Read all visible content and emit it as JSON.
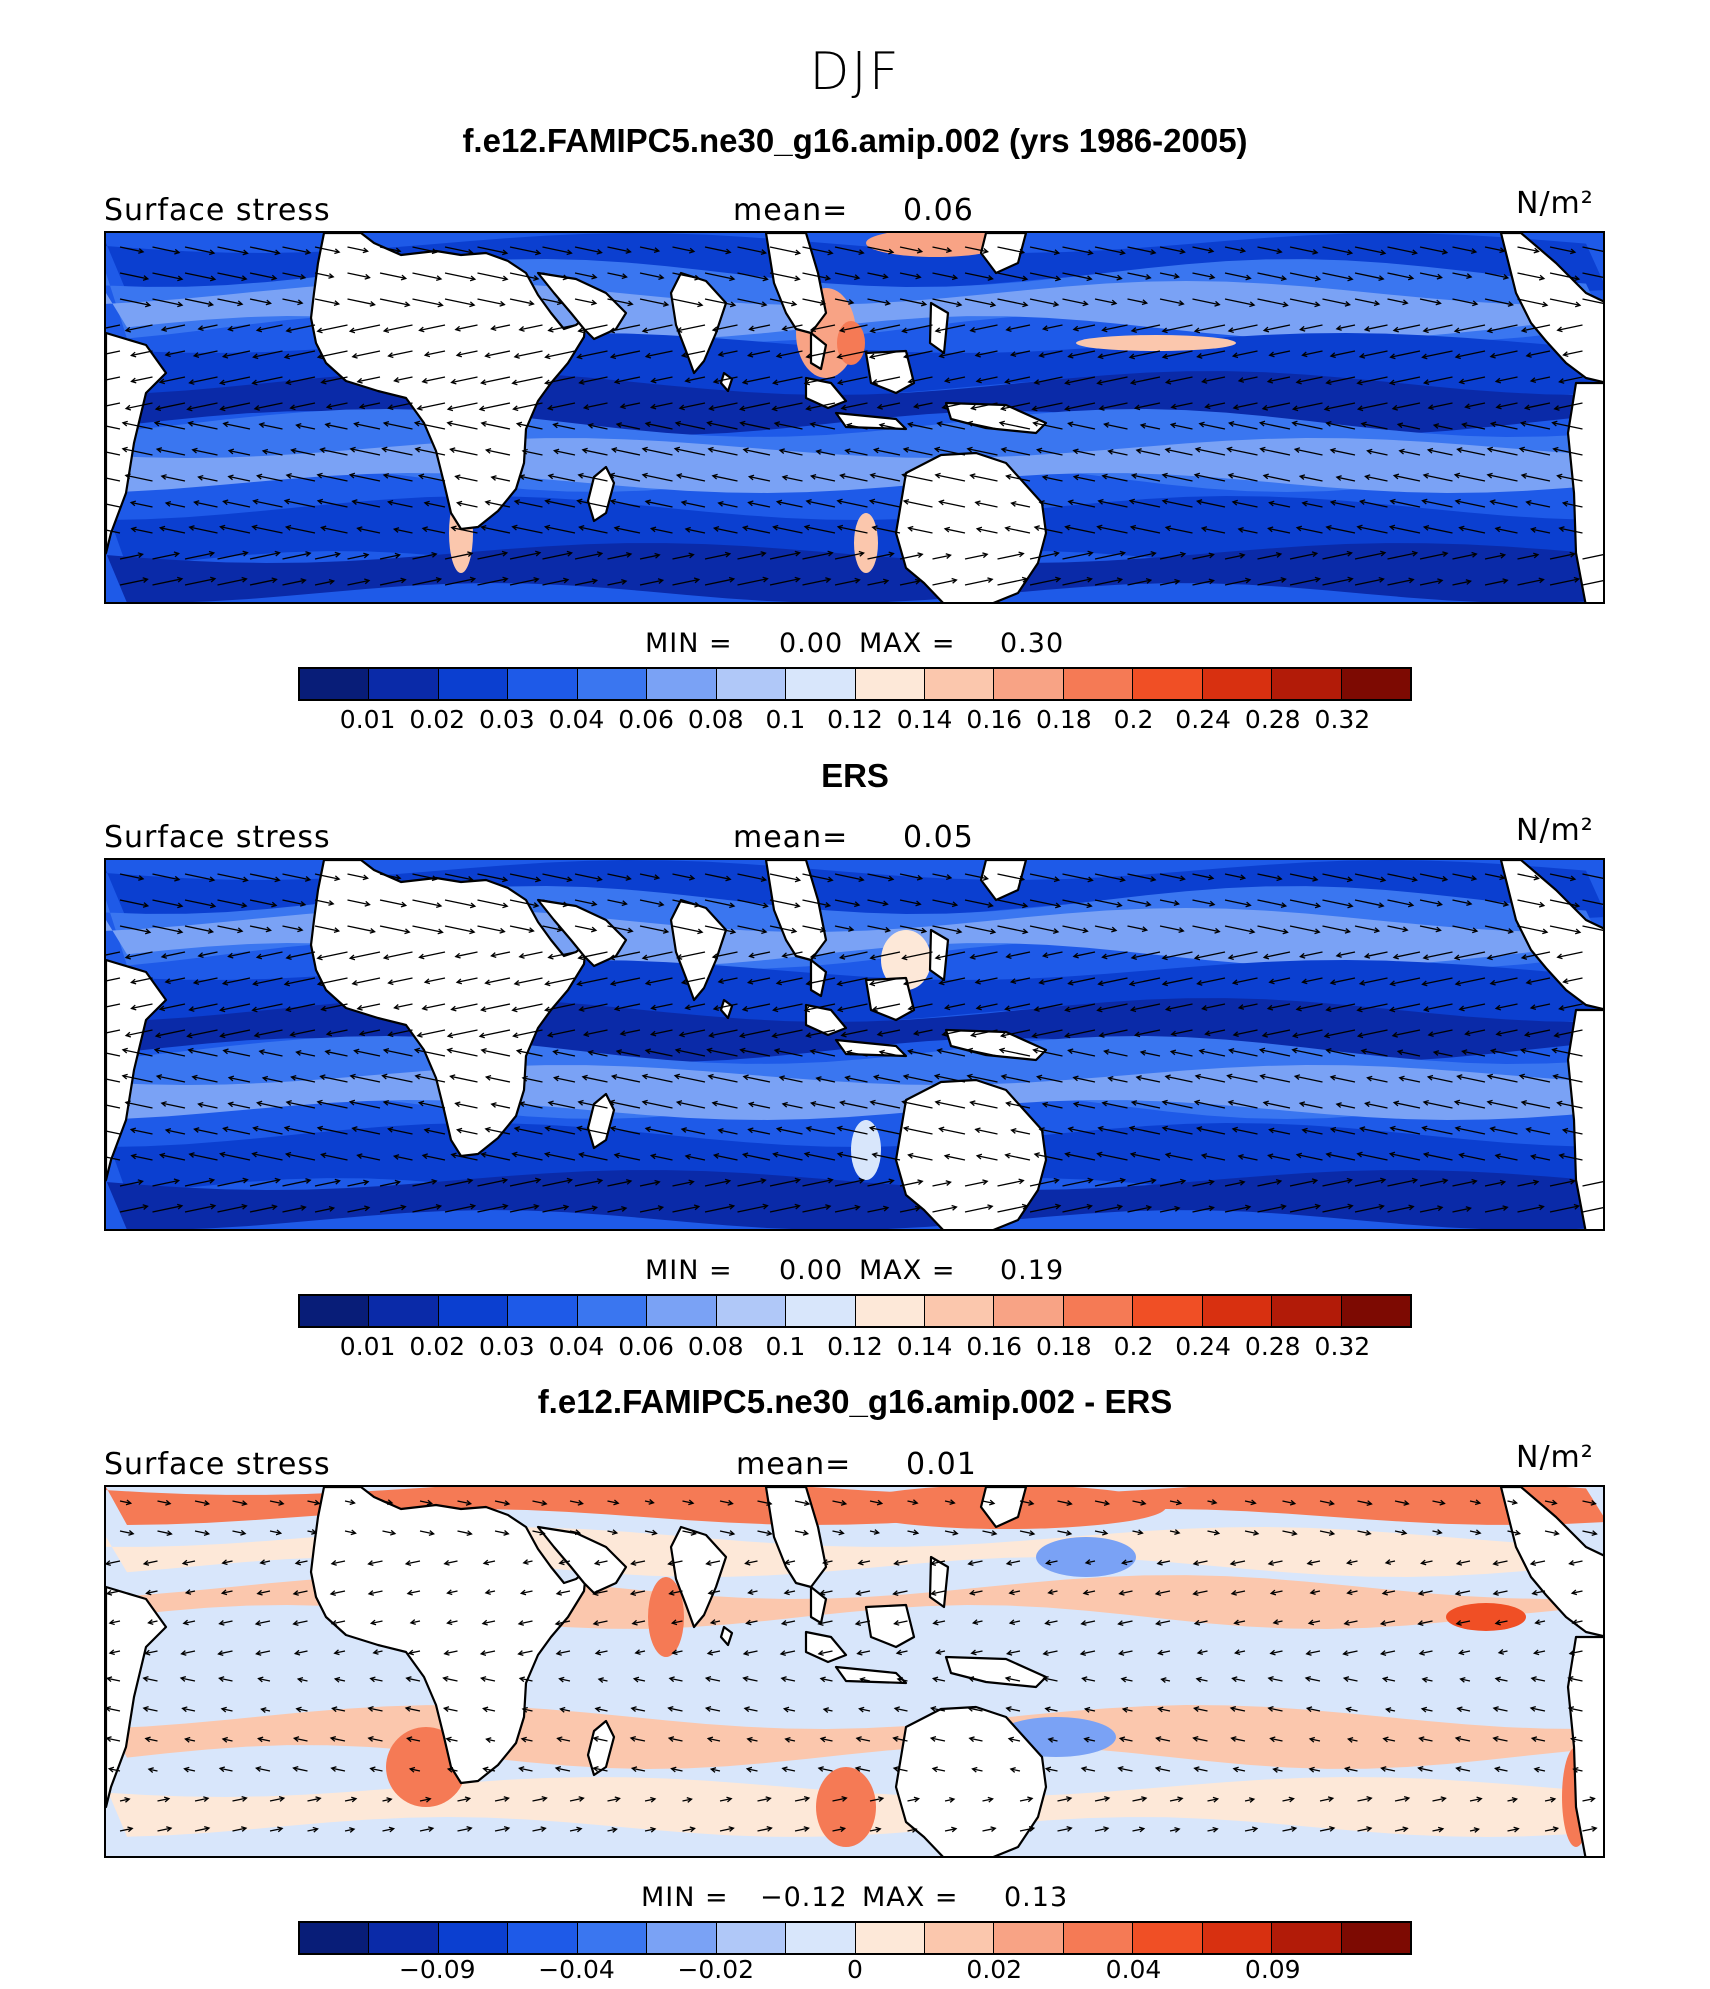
{
  "season": "DJF",
  "colors": [
    "#081d78",
    "#0a2aa8",
    "#0b3fd0",
    "#1e5ae8",
    "#3a76f0",
    "#7aa2f5",
    "#b0c8f8",
    "#d8e6fb",
    "#fde8d8",
    "#fbc7ad",
    "#f8a385",
    "#f57a55",
    "#f04f25",
    "#d83010",
    "#b21b08",
    "#7d0a02"
  ],
  "panels": [
    {
      "title": "f.e12.FAMIPC5.ne30_g16.amip.002 (yrs 1986-2005)",
      "field": "Surface stress",
      "mean_label": "mean=",
      "mean_value": "0.06",
      "units": "N/m²",
      "min_label": "MIN =",
      "min_value": "0.00",
      "max_label": "MAX =",
      "max_value": "0.30",
      "ticks": [
        "0.01",
        "0.02",
        "0.03",
        "0.04",
        "0.06",
        "0.08",
        "0.1",
        "0.12",
        "0.14",
        "0.16",
        "0.18",
        "0.2",
        "0.24",
        "0.28",
        "0.32"
      ]
    },
    {
      "title": "ERS",
      "field": "Surface stress",
      "mean_label": "mean=",
      "mean_value": "0.05",
      "units": "N/m²",
      "min_label": "MIN =",
      "min_value": "0.00",
      "max_label": "MAX =",
      "max_value": "0.19",
      "ticks": [
        "0.01",
        "0.02",
        "0.03",
        "0.04",
        "0.06",
        "0.08",
        "0.1",
        "0.12",
        "0.14",
        "0.16",
        "0.18",
        "0.2",
        "0.24",
        "0.28",
        "0.32"
      ]
    },
    {
      "title": "f.e12.FAMIPC5.ne30_g16.amip.002 - ERS",
      "field": "Surface stress",
      "mean_label": "mean=",
      "mean_value": "0.01",
      "units": "N/m²",
      "min_label": "MIN =",
      "min_value": "−0.12",
      "max_label": "MAX =",
      "max_value": "0.13",
      "ticks": [
        "",
        "−0.09",
        "",
        "−0.04",
        "",
        "−0.02",
        "",
        "0",
        "",
        "0.02",
        "",
        "0.04",
        "",
        "0.09",
        ""
      ]
    }
  ]
}
